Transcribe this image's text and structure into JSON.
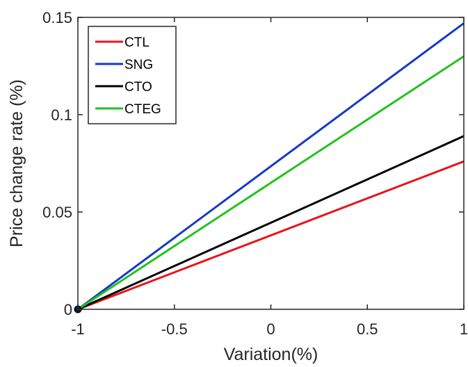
{
  "chart_data": {
    "type": "line",
    "title": "",
    "xlabel": "Variation(%)",
    "ylabel": "Price change rate (%)",
    "xlim": [
      -1,
      1
    ],
    "ylim": [
      0,
      0.15
    ],
    "xticks": [
      -1,
      -0.5,
      0,
      0.5,
      1
    ],
    "xtick_labels": [
      "-1",
      "-0.5",
      "0",
      "0.5",
      "1"
    ],
    "yticks": [
      0,
      0.05,
      0.1,
      0.15
    ],
    "ytick_labels": [
      "0",
      "0.05",
      "0.1",
      "0.15"
    ],
    "grid": false,
    "legend_position": "top-left",
    "series": [
      {
        "name": "CTL",
        "color": "#e8141b",
        "x": [
          -1,
          1
        ],
        "y": [
          0,
          0.076
        ]
      },
      {
        "name": "SNG",
        "color": "#1538c8",
        "x": [
          -1,
          1
        ],
        "y": [
          0,
          0.147
        ]
      },
      {
        "name": "CTO",
        "color": "#000000",
        "x": [
          -1,
          1
        ],
        "y": [
          0,
          0.089
        ]
      },
      {
        "name": "CTEG",
        "color": "#22c21c",
        "x": [
          -1,
          1
        ],
        "y": [
          0,
          0.13
        ]
      }
    ],
    "markers": [
      {
        "x": -1,
        "y": 0,
        "color": "#0b1a3a"
      }
    ]
  }
}
